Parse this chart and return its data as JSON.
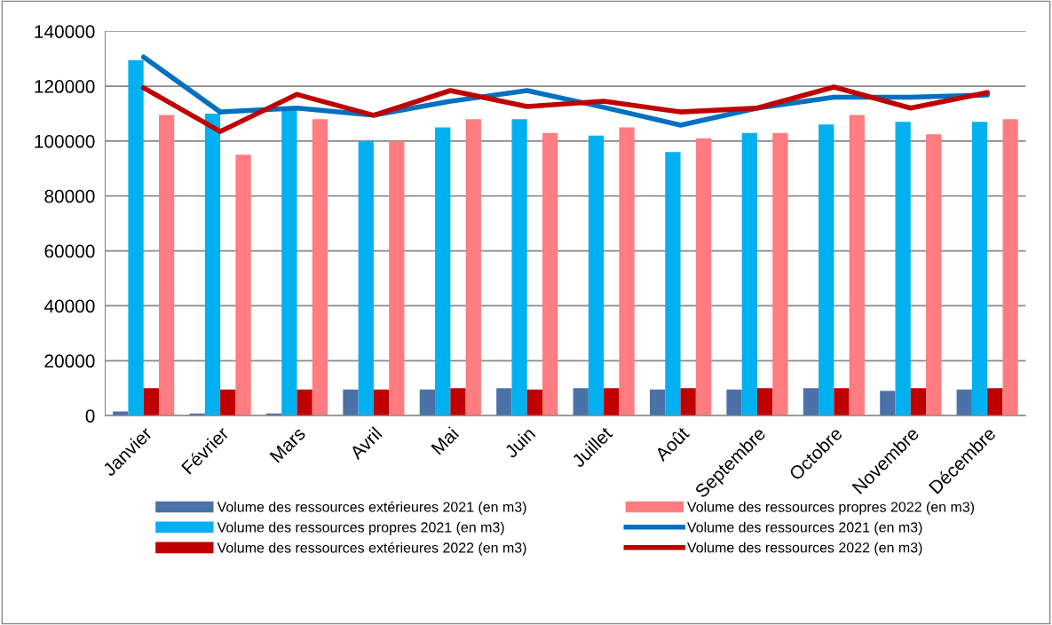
{
  "chart_data": {
    "type": "bar",
    "categories": [
      "Janvier",
      "Février",
      "Mars",
      "Avril",
      "Mai",
      "Juin",
      "Juillet",
      "Août",
      "Septembre",
      "Octobre",
      "Novembre",
      "Décembre"
    ],
    "series": [
      {
        "name": "Volume des ressources extérieures 2021 (en m3)",
        "color": "#4a72a8",
        "values": [
          1500,
          800,
          800,
          9500,
          9500,
          10000,
          10000,
          9500,
          9500,
          10000,
          9000,
          9500
        ]
      },
      {
        "name": "Volume des ressources propres 2021 (en m3)",
        "color": "#00b0f0",
        "values": [
          129500,
          110000,
          112000,
          100000,
          105000,
          108000,
          102000,
          96000,
          103000,
          106000,
          107000,
          107000
        ]
      },
      {
        "name": "Volume des ressources extérieures 2022 (en m3)",
        "color": "#c00000",
        "values": [
          10000,
          9500,
          9500,
          9500,
          10000,
          9500,
          10000,
          10000,
          10000,
          10000,
          10000,
          10000
        ]
      },
      {
        "name": "Volume des ressources propres 2022 (en m3)",
        "color": "#ff7c80",
        "values": [
          109500,
          95000,
          108000,
          100000,
          108000,
          103000,
          105000,
          101000,
          103000,
          109500,
          102500,
          108000
        ]
      },
      {
        "name": "Volume des ressources 2021 (en m3)",
        "type": "line",
        "color": "#0070c0",
        "values": [
          130600,
          110600,
          112000,
          109400,
          114500,
          118400,
          112300,
          105800,
          112000,
          116000,
          116000,
          116800
        ]
      },
      {
        "name": "Volume des ressources 2022 (en m3)",
        "type": "line",
        "color": "#c00000",
        "values": [
          119400,
          103500,
          117000,
          109400,
          118400,
          112600,
          114500,
          110600,
          112000,
          119700,
          112000,
          117700
        ]
      }
    ],
    "ylim": [
      0,
      140000
    ],
    "yticks": [
      0,
      20000,
      40000,
      60000,
      80000,
      100000,
      120000,
      140000
    ],
    "grid": "y",
    "legend": "bottom",
    "marker": "none",
    "line_style": "solid"
  }
}
